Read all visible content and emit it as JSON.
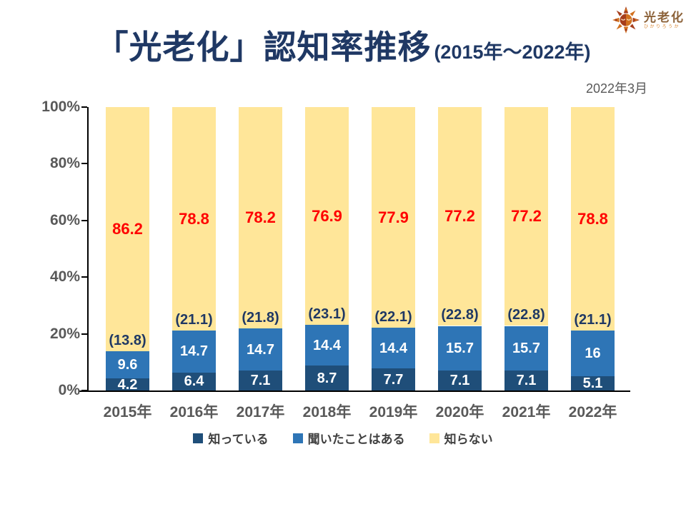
{
  "logo": {
    "brand": "光老化",
    "reading": "ひかりろうか"
  },
  "header": {
    "title": "「光老化」認知率推移",
    "subtitle": "(2015年～2022年)",
    "date_note": "2022年3月"
  },
  "chart_data": {
    "type": "bar",
    "stacked": true,
    "title": "「光老化」認知率推移 (2015年～2022年)",
    "xlabel": "",
    "ylabel": "",
    "ylim": [
      0,
      100
    ],
    "grid": false,
    "legend_position": "bottom",
    "categories": [
      "2015年",
      "2016年",
      "2017年",
      "2018年",
      "2019年",
      "2020年",
      "2021年",
      "2022年"
    ],
    "series": [
      {
        "name": "知っている",
        "color": "#1F4E79",
        "label_color": "#FFFFFF",
        "values": [
          4.2,
          6.4,
          7.1,
          8.7,
          7.7,
          7.1,
          7.1,
          5.1
        ]
      },
      {
        "name": "聞いたことはある",
        "color": "#2E75B6",
        "label_color": "#FFFFFF",
        "values": [
          9.6,
          14.7,
          14.7,
          14.4,
          14.4,
          15.7,
          15.7,
          16
        ]
      },
      {
        "name": "知らない",
        "color": "#FFE699",
        "label_color": "#FF0000",
        "values": [
          86.2,
          78.8,
          78.2,
          76.9,
          77.9,
          77.2,
          77.2,
          78.8
        ]
      }
    ],
    "combined_labels": [
      "(13.8)",
      "(21.1)",
      "(21.8)",
      "(23.1)",
      "(22.1)",
      "(22.8)",
      "(22.8)",
      "(21.1)"
    ],
    "combined_label_color": "#1F3864",
    "y_ticks": [
      {
        "value": 0,
        "label": "0%"
      },
      {
        "value": 20,
        "label": "20%"
      },
      {
        "value": 40,
        "label": "40%"
      },
      {
        "value": 60,
        "label": "60%"
      },
      {
        "value": 80,
        "label": "80%"
      },
      {
        "value": 100,
        "label": "100%"
      }
    ]
  },
  "colors": {
    "title": "#1F3864",
    "axis_text": "#595959",
    "axis_line": "#000000",
    "legend_text": "#404040",
    "red_label": "#FF0000",
    "logo_brown": "#8C6239",
    "logo_orange": "#D9822B",
    "sun_dark": "#A63E1C",
    "sun_light": "#D2711F",
    "sun_face": "#F5DCC0"
  }
}
